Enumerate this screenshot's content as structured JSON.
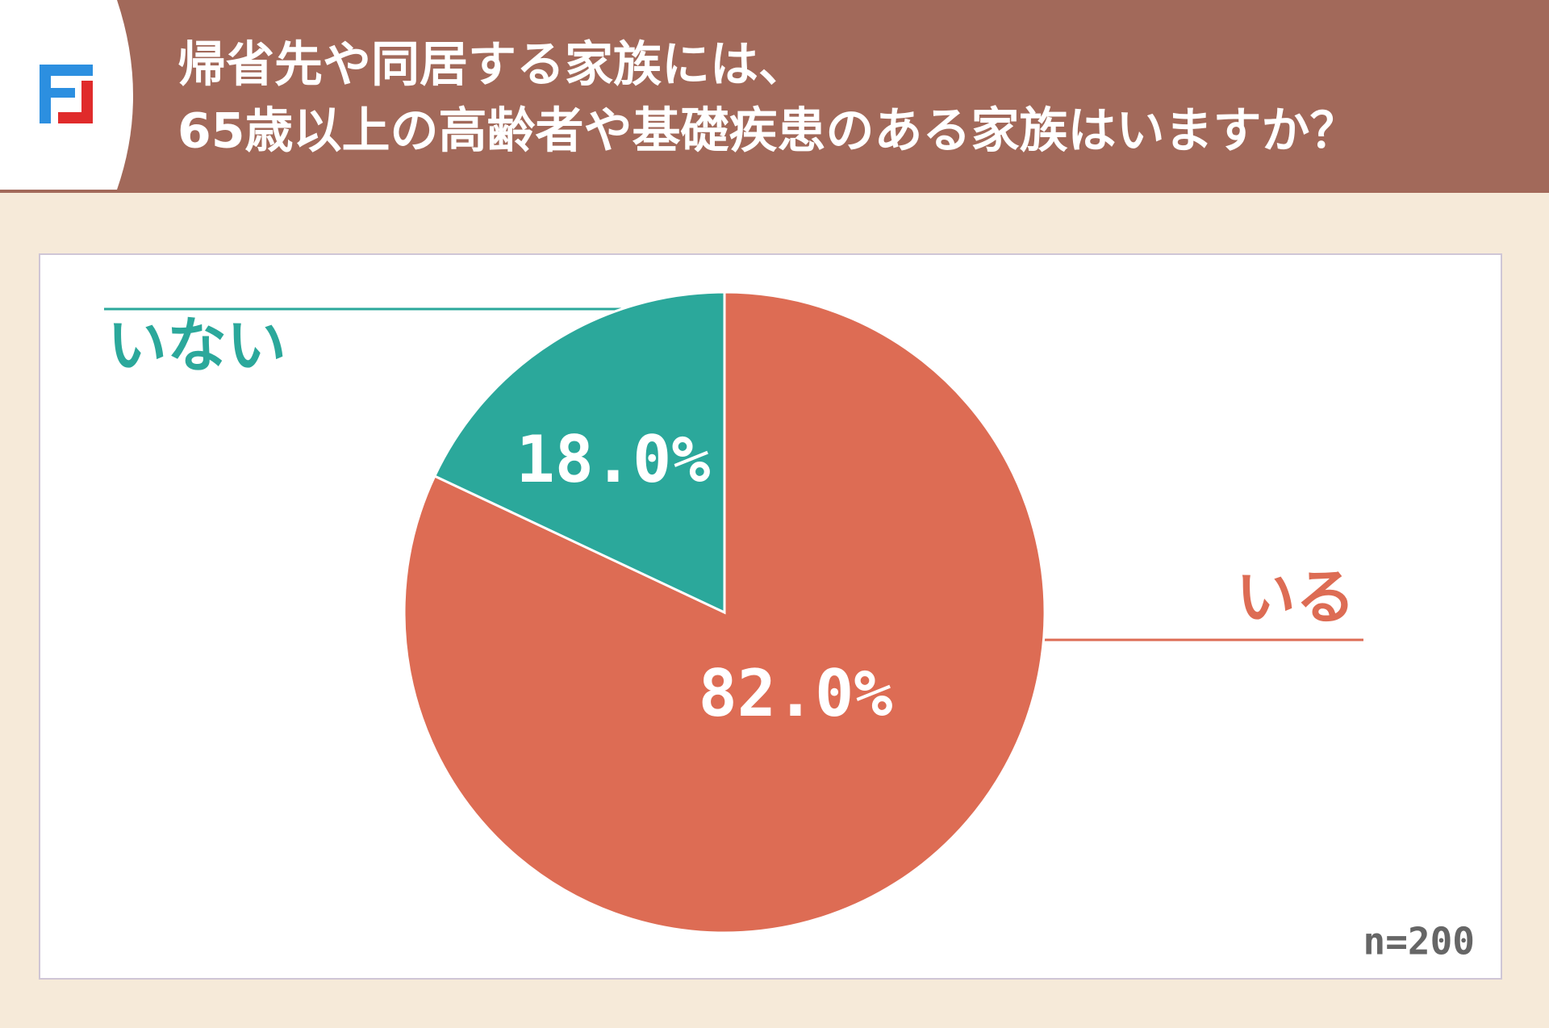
{
  "chart_data": {
    "type": "pie",
    "title": [
      "帰省先や同居する家族には、",
      "65歳以上の高齢者や基礎疾患のある家族はいますか？"
    ],
    "categories": [
      "いる",
      "いない"
    ],
    "values": [
      82.0,
      18.0
    ],
    "value_labels": [
      "82.0%",
      "18.0%"
    ],
    "colors": [
      "#dd6c54",
      "#2ba89b"
    ],
    "note": "n=200"
  }
}
